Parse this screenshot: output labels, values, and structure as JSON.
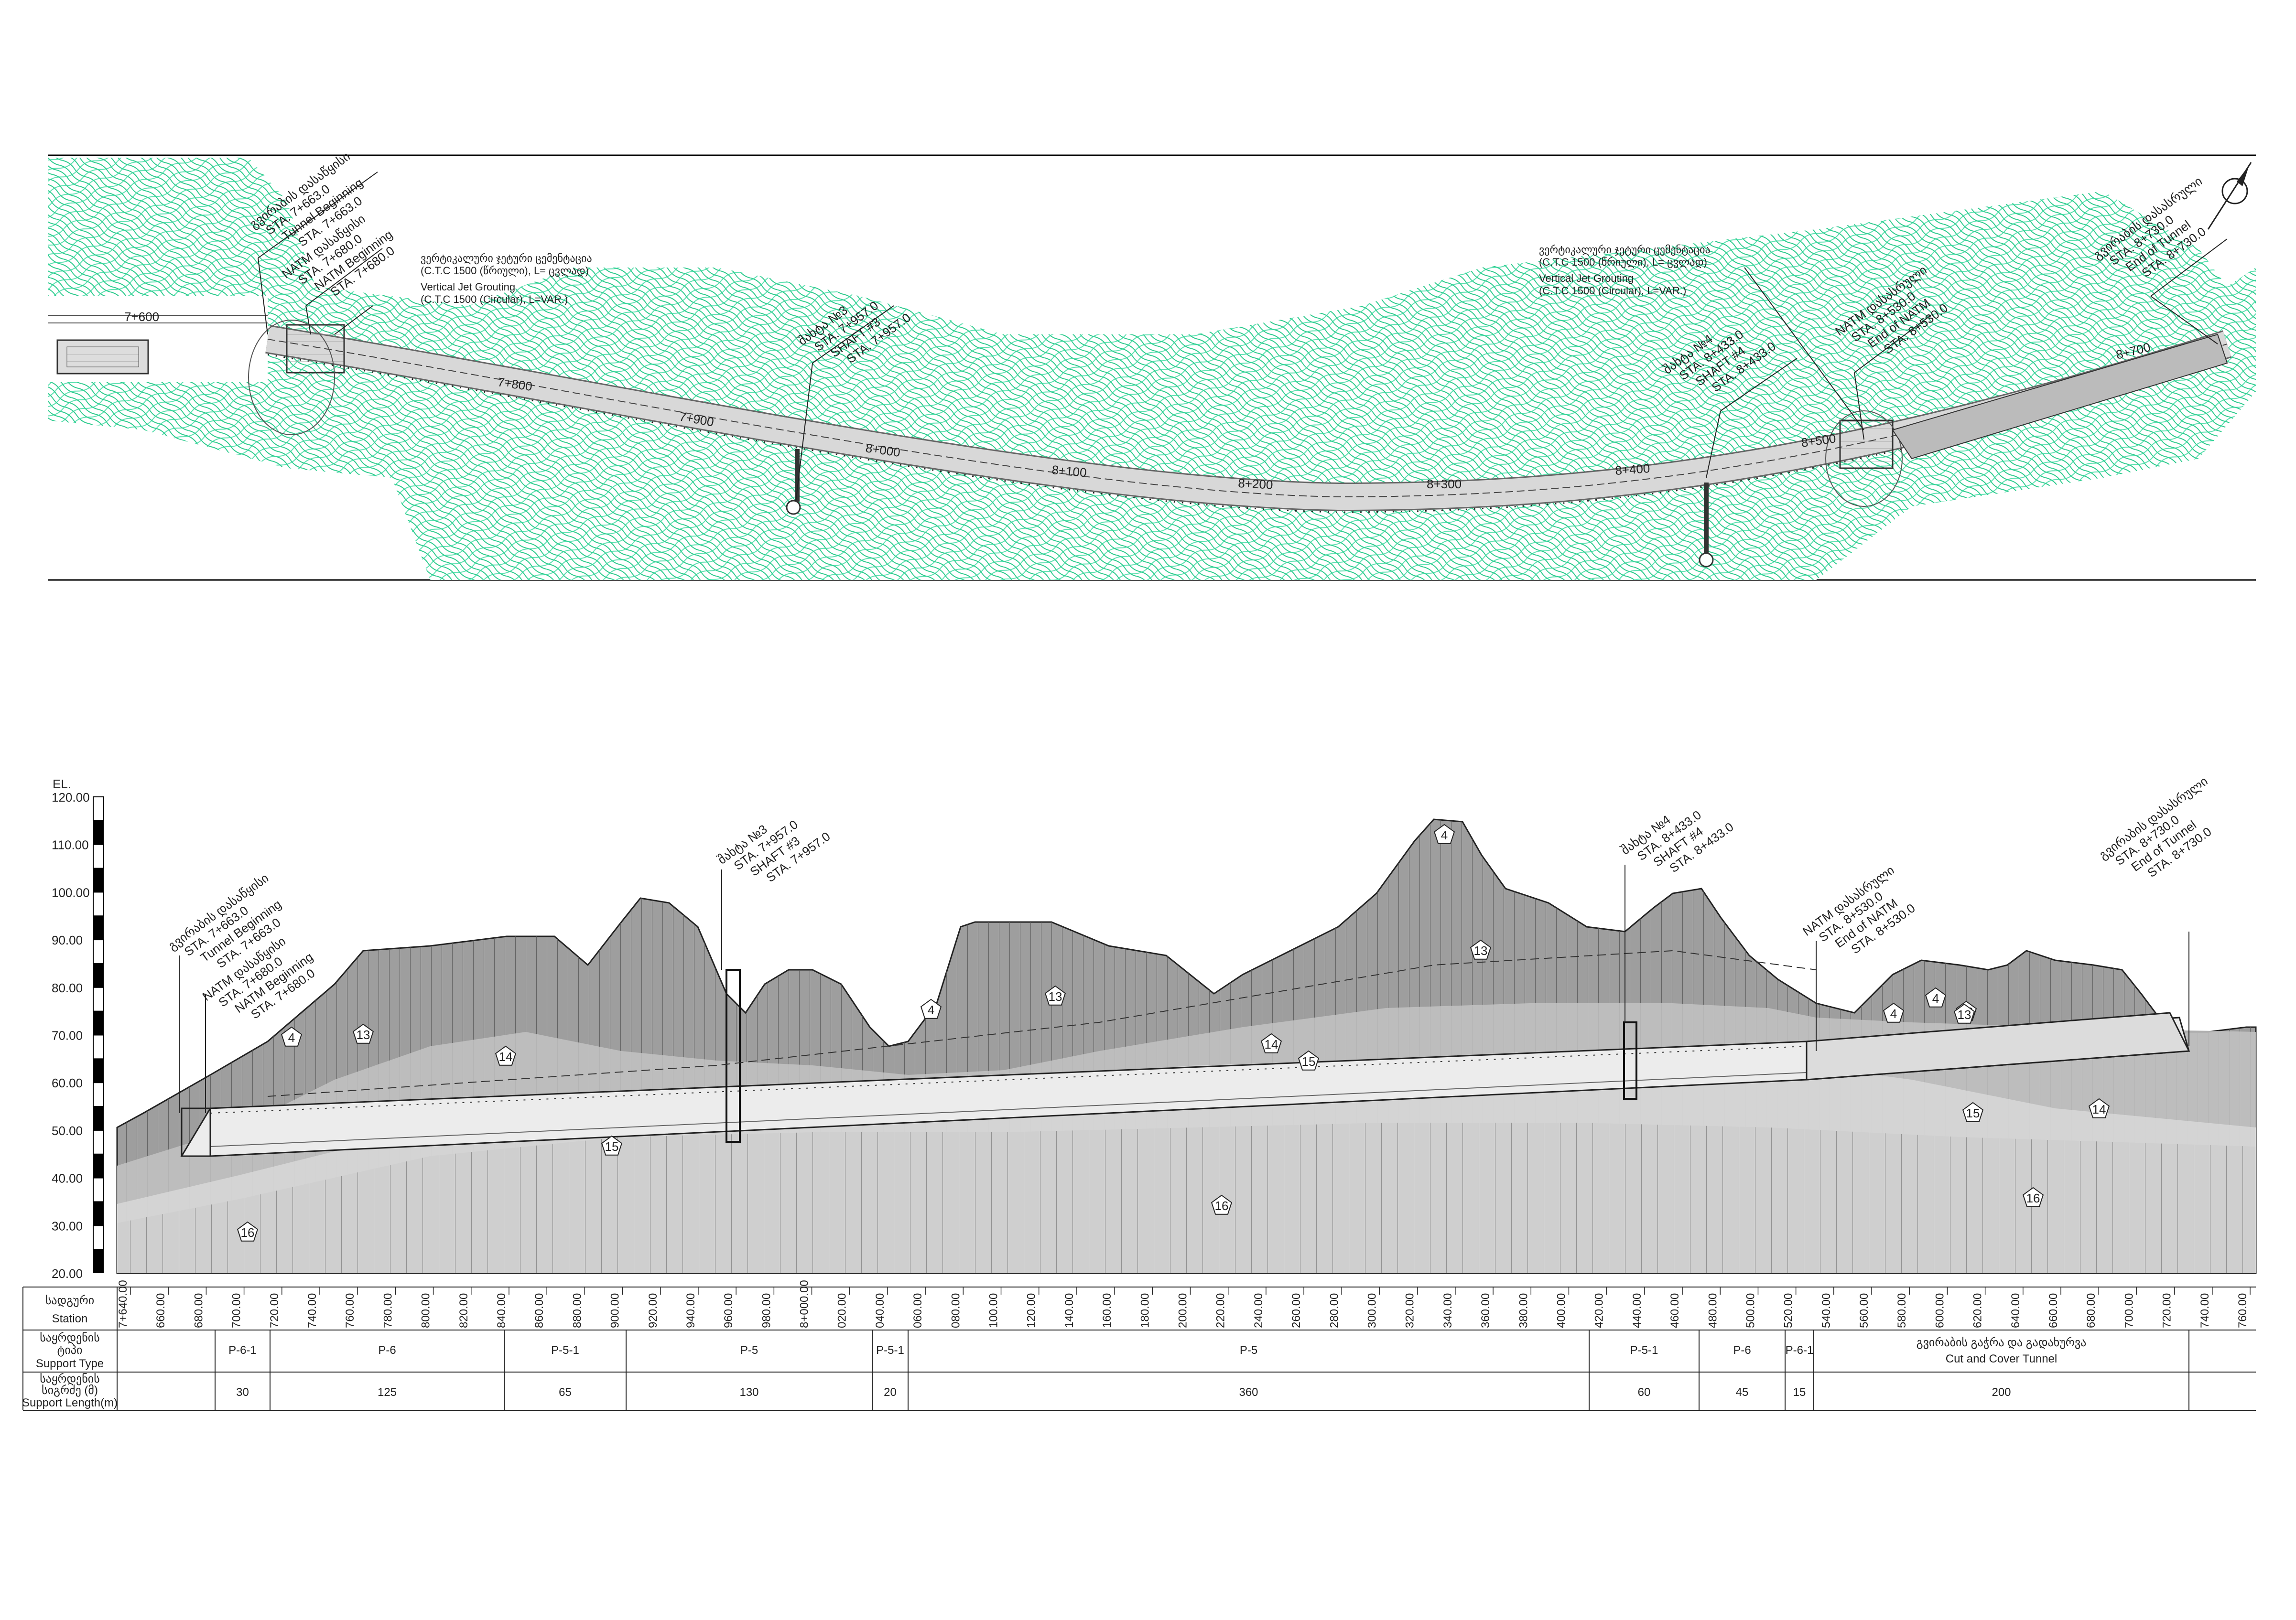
{
  "plan": {
    "stations": [
      "7+600",
      "7+800",
      "7+900",
      "8+000",
      "8+100",
      "8+200",
      "8+300",
      "8+400",
      "8+500",
      "8+700"
    ],
    "callouts": {
      "tunnel_start_ka": "გვირაბის დასაწყისი",
      "tunnel_start_sta1": "STA. 7+663.0",
      "tunnel_start_en": "Tunnel Beginning",
      "tunnel_start_sta2": "STA. 7+663.0",
      "natm_start_ka": "NATM დასაწყისი",
      "natm_start_sta1": "STA. 7+680.0",
      "natm_start_en": "NATM Beginning",
      "natm_start_sta2": "STA. 7+680.0",
      "jet_left_ka1": "ვერტიკალური ჯეტური ცემენტაცია",
      "jet_left_ka2": "(C.T.C 1500  (წრიული), L= ცვლად)",
      "jet_left_en1": "Vertical Jet Grouting",
      "jet_left_en2": "(C.T.C 1500 (Circular), L=VAR.)",
      "shaft3_ka": "შახტა №3",
      "shaft3_sta1": "STA. 7+957.0",
      "shaft3_en": "SHAFT #3",
      "shaft3_sta2": "STA. 7+957.0",
      "jet_right_ka1": "ვერტიკალური ჯეტური ცემენტაცია",
      "jet_right_ka2": "(C.T.C 1500  (წრიული), L= ცვლად)",
      "jet_right_en1": "Vertical Jet Grouting",
      "jet_right_en2": "(C.T.C 1500 (Circular), L=VAR.)",
      "shaft4_ka": "შახტა №4",
      "shaft4_sta1": "STA. 8+433.0",
      "shaft4_en": "SHAFT #4",
      "shaft4_sta2": "STA. 8+433.0",
      "natm_end_ka": "NATM დასასრული",
      "natm_end_sta1": "STA. 8+530.0",
      "natm_end_en": "End of NATM",
      "natm_end_sta2": "STA. 8+530.0",
      "tunnel_end_ka": "გვირაბის დასასრული",
      "tunnel_end_sta1": "STA. 8+730.0",
      "tunnel_end_en": "End of Tunnel",
      "tunnel_end_sta2": "STA. 8+730.0"
    }
  },
  "profile": {
    "el_label": "EL.",
    "elevations": [
      "120.00",
      "110.00",
      "100.00",
      "90.00",
      "80.00",
      "70.00",
      "60.00",
      "50.00",
      "40.00",
      "30.00",
      "20.00"
    ],
    "layer_markers": [
      "4",
      "13",
      "14",
      "15",
      "16",
      "4",
      "13",
      "4",
      "13",
      "14",
      "15",
      "4",
      "13",
      "16",
      "4",
      "13",
      "15",
      "14",
      "16"
    ],
    "callouts": {
      "tunnel_start_ka": "გვირაბის დასაწყისი",
      "tunnel_start_sta1": "STA. 7+663.0",
      "tunnel_start_en": "Tunnel Beginning",
      "tunnel_start_sta2": "STA. 7+663.0",
      "natm_start_ka": "NATM დასაწყისი",
      "natm_start_sta1": "STA. 7+680.0",
      "natm_start_en": "NATM Beginning",
      "natm_start_sta2": "STA. 7+680.0",
      "shaft3_ka": "შახტა №3",
      "shaft3_sta1": "STA. 7+957.0",
      "shaft3_en": "SHAFT #3",
      "shaft3_sta2": "STA. 7+957.0",
      "shaft4_ka": "შახტა №4",
      "shaft4_sta1": "STA. 8+433.0",
      "shaft4_en": "SHAFT #4",
      "shaft4_sta2": "STA. 8+433.0",
      "natm_end_ka": "NATM დასასრული",
      "natm_end_sta1": "STA. 8+530.0",
      "natm_end_en": "End of NATM",
      "natm_end_sta2": "STA. 8+530.0",
      "tunnel_end_ka": "გვირაბის დასასრული",
      "tunnel_end_sta1": "STA. 8+730.0",
      "tunnel_end_en": "End of Tunnel",
      "tunnel_end_sta2": "STA. 8+730.0"
    }
  },
  "table": {
    "row_station_ka": "სადგური",
    "row_station_en": "Station",
    "row_type_ka1": "საყრდენის",
    "row_type_ka2": "ტიპი",
    "row_type_en": "Support Type",
    "row_len_ka1": "საყრდენის",
    "row_len_ka2": "სიგრძე (მ)",
    "row_len_en": "Support Length(m)",
    "station_ticks": [
      "7+640.00",
      "660.00",
      "680.00",
      "700.00",
      "720.00",
      "740.00",
      "760.00",
      "780.00",
      "800.00",
      "820.00",
      "840.00",
      "860.00",
      "880.00",
      "900.00",
      "920.00",
      "940.00",
      "960.00",
      "980.00",
      "8+000.00",
      "020.00",
      "040.00",
      "060.00",
      "080.00",
      "100.00",
      "120.00",
      "140.00",
      "160.00",
      "180.00",
      "200.00",
      "220.00",
      "240.00",
      "260.00",
      "280.00",
      "300.00",
      "320.00",
      "340.00",
      "360.00",
      "380.00",
      "400.00",
      "420.00",
      "440.00",
      "460.00",
      "480.00",
      "500.00",
      "520.00",
      "540.00",
      "560.00",
      "580.00",
      "600.00",
      "620.00",
      "640.00",
      "660.00",
      "680.00",
      "700.00",
      "720.00",
      "740.00",
      "760.00"
    ],
    "segments": [
      {
        "type": "P-6-1",
        "len": "30"
      },
      {
        "type": "P-6",
        "len": "125"
      },
      {
        "type": "P-5-1",
        "len": "65"
      },
      {
        "type": "P-5",
        "len": "130"
      },
      {
        "type": "P-5-1",
        "len": "20"
      },
      {
        "type": "P-5",
        "len": "360"
      },
      {
        "type": "P-5-1",
        "len": "60"
      },
      {
        "type": "P-6",
        "len": "45"
      },
      {
        "type": "P-6-1",
        "len": "15"
      },
      {
        "type": "გვირაბის გაჭრა და გადახურვა",
        "type2": "Cut and Cover Tunnel",
        "len": "200"
      }
    ]
  }
}
